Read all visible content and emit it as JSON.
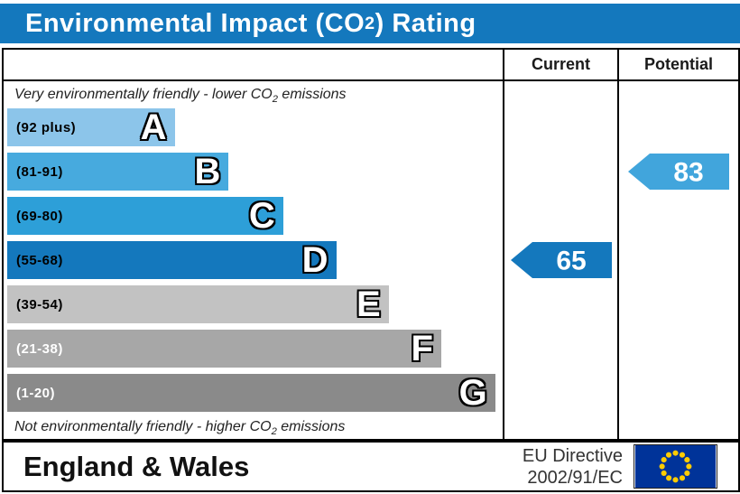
{
  "title": {
    "prefix": "Environmental Impact (CO",
    "sub": "2",
    "suffix": ") Rating"
  },
  "title_bar_color": "#1478bd",
  "columns": {
    "current": "Current",
    "potential": "Potential"
  },
  "top_note": {
    "prefix": "Very environmentally friendly - lower CO",
    "sub": "2",
    "suffix": " emissions"
  },
  "bottom_note": {
    "prefix": "Not environmentally friendly - higher CO",
    "sub": "2",
    "suffix": " emissions"
  },
  "bands": [
    {
      "letter": "A",
      "range": "(92 plus)",
      "color": "#8cc5ea",
      "label_color": "#000000",
      "width_pct": 33.8
    },
    {
      "letter": "B",
      "range": "(81-91)",
      "color": "#47aade",
      "label_color": "#000000",
      "width_pct": 44.7
    },
    {
      "letter": "C",
      "range": "(69-80)",
      "color": "#2d9fd8",
      "label_color": "#000000",
      "width_pct": 55.7
    },
    {
      "letter": "D",
      "range": "(55-68)",
      "color": "#1478bd",
      "label_color": "#000000",
      "width_pct": 66.4
    },
    {
      "letter": "E",
      "range": "(39-54)",
      "color": "#c2c2c2",
      "label_color": "#000000",
      "width_pct": 77.0
    },
    {
      "letter": "F",
      "range": "(21-38)",
      "color": "#a7a7a7",
      "label_color": "#ffffff",
      "width_pct": 87.6
    },
    {
      "letter": "G",
      "range": "(1-20)",
      "color": "#8a8a8a",
      "label_color": "#ffffff",
      "width_pct": 98.5
    }
  ],
  "current": {
    "value": "65",
    "band_index": 3,
    "color": "#1478bd"
  },
  "potential": {
    "value": "83",
    "band_index": 1,
    "color": "#41a5dc"
  },
  "footer": {
    "region": "England & Wales",
    "directive_line1": "EU Directive",
    "directive_line2": "2002/91/EC"
  },
  "eu_flag": {
    "background": "#003399",
    "star_color": "#ffcc00"
  },
  "chart_data": {
    "type": "bar",
    "title": "Environmental Impact (CO2) Rating",
    "categories": [
      "A (92 plus)",
      "B (81-91)",
      "C (69-80)",
      "D (55-68)",
      "E (39-54)",
      "F (21-38)",
      "G (1-20)"
    ],
    "band_bounds": [
      [
        92,
        100
      ],
      [
        81,
        91
      ],
      [
        69,
        80
      ],
      [
        55,
        68
      ],
      [
        39,
        54
      ],
      [
        21,
        38
      ],
      [
        1,
        20
      ]
    ],
    "bar_widths_pct": [
      33.8,
      44.7,
      55.7,
      66.4,
      77.0,
      87.6,
      98.5
    ],
    "series": [
      {
        "name": "Current",
        "value": 65,
        "band": "D"
      },
      {
        "name": "Potential",
        "value": 83,
        "band": "B"
      }
    ],
    "xlabel": "",
    "ylabel": "",
    "legend": [
      "Current",
      "Potential"
    ],
    "annotations": [
      "Very environmentally friendly - lower CO2 emissions",
      "Not environmentally friendly - higher CO2 emissions"
    ],
    "footer": "England & Wales — EU Directive 2002/91/EC"
  }
}
